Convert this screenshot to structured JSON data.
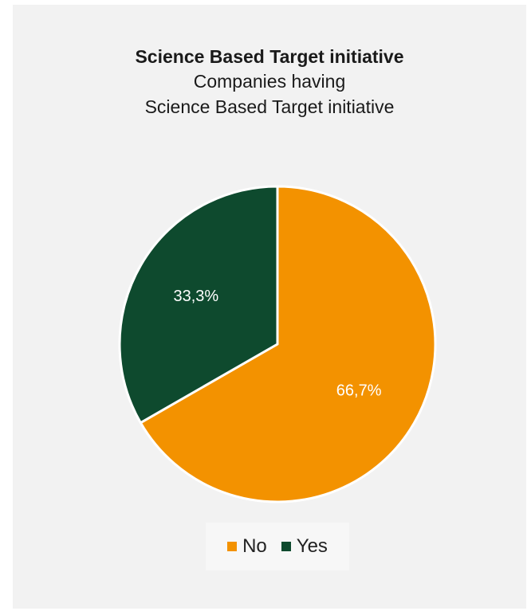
{
  "chart_data": {
    "type": "pie",
    "title": "Science Based Target initiative",
    "subtitle_lines": [
      "Companies having",
      "Science Based Target initiative"
    ],
    "slices": [
      {
        "name": "No",
        "value": 66.7,
        "label": "66,7%",
        "color": "#f39200"
      },
      {
        "name": "Yes",
        "value": 33.3,
        "label": "33,3%",
        "color": "#0e4a2e"
      }
    ],
    "legend_position": "bottom"
  }
}
